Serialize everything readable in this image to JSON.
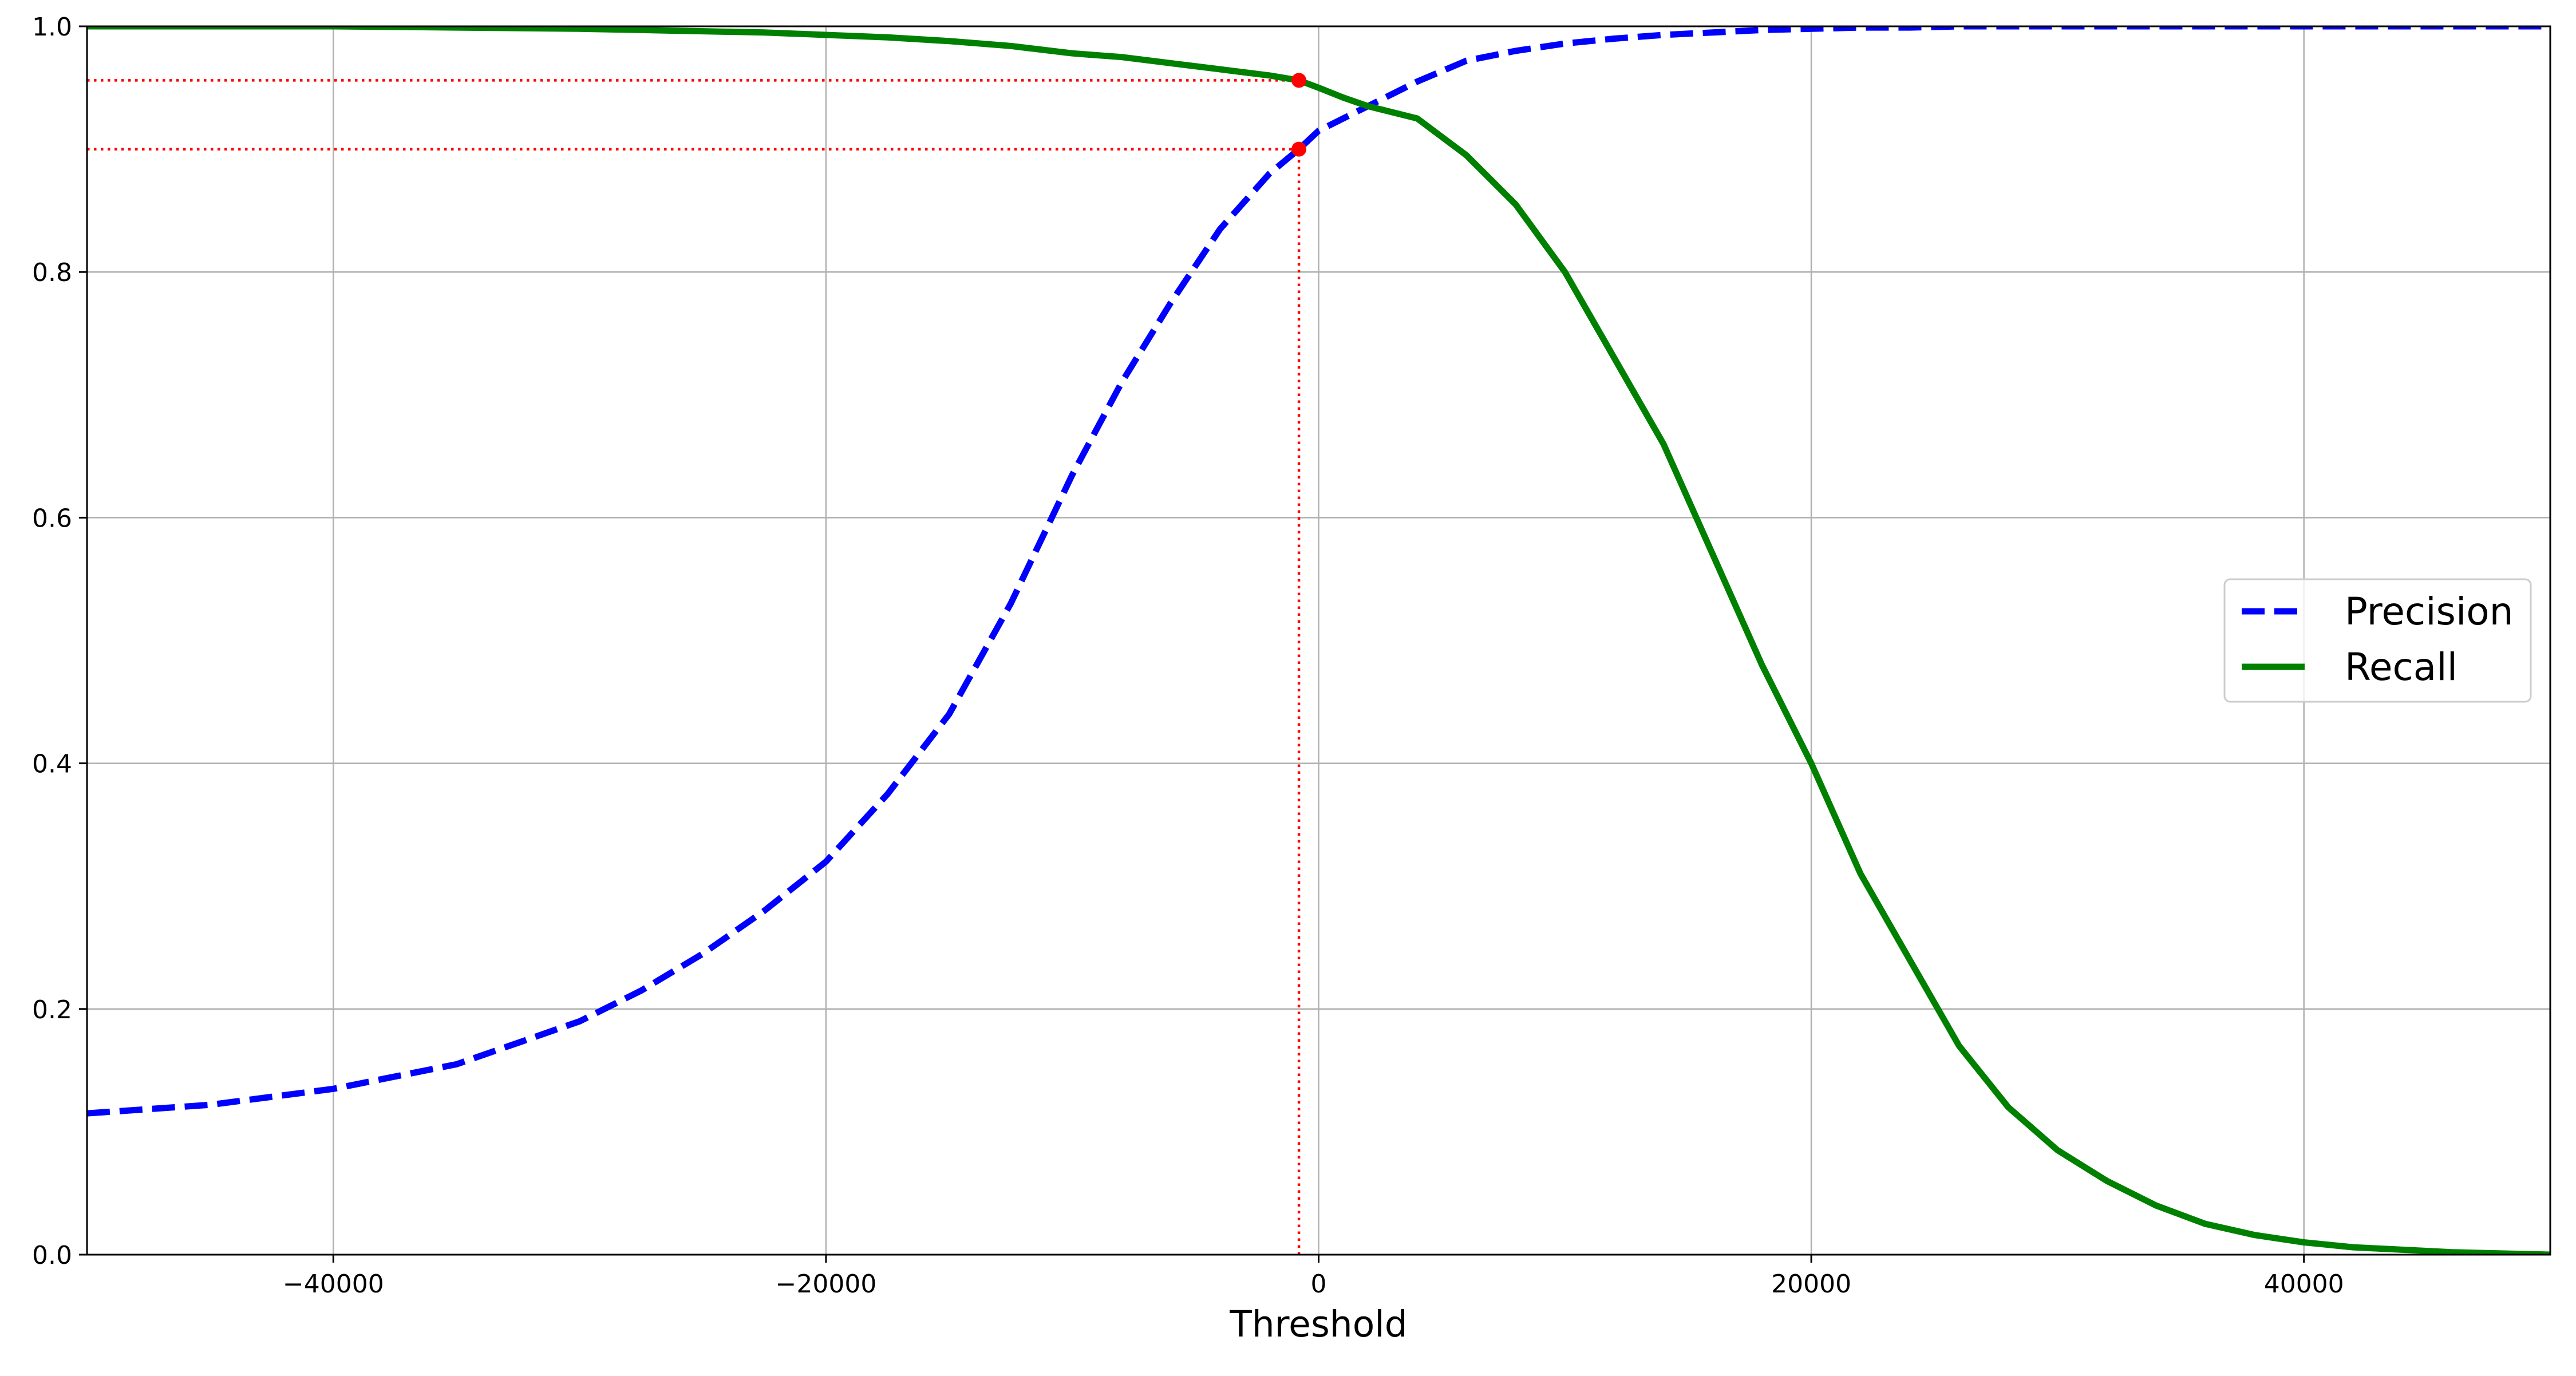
{
  "chart_data": {
    "type": "line",
    "title": "",
    "xlabel": "Threshold",
    "ylabel": "",
    "xlim": [
      -50000,
      50000
    ],
    "ylim": [
      0,
      1.0
    ],
    "grid": true,
    "legend_position": "center-right",
    "x_ticks": [
      -40000,
      -20000,
      0,
      20000,
      40000
    ],
    "x_tick_labels": [
      "−40000",
      "−20000",
      "0",
      "20000",
      "40000"
    ],
    "y_ticks": [
      0.0,
      0.2,
      0.4,
      0.6,
      0.8,
      1.0
    ],
    "y_tick_labels": [
      "0.0",
      "0.2",
      "0.4",
      "0.6",
      "0.8",
      "1.0"
    ],
    "x": [
      -50000,
      -45000,
      -40000,
      -35000,
      -30000,
      -27500,
      -25000,
      -22500,
      -20000,
      -17500,
      -15000,
      -12500,
      -10000,
      -8000,
      -6000,
      -4000,
      -2000,
      -800,
      0,
      1000,
      2000,
      4000,
      6000,
      8000,
      10000,
      12000,
      14000,
      16000,
      18000,
      20000,
      22000,
      24000,
      26000,
      28000,
      30000,
      32000,
      34000,
      36000,
      38000,
      40000,
      42000,
      44000,
      46000,
      48000,
      50000
    ],
    "series": [
      {
        "name": "Precision",
        "color": "#0000ff",
        "style": "dashed",
        "values": [
          0.115,
          0.122,
          0.135,
          0.155,
          0.19,
          0.215,
          0.245,
          0.28,
          0.32,
          0.375,
          0.44,
          0.53,
          0.635,
          0.71,
          0.775,
          0.835,
          0.88,
          0.9,
          0.915,
          0.925,
          0.935,
          0.955,
          0.972,
          0.98,
          0.986,
          0.99,
          0.993,
          0.995,
          0.997,
          0.998,
          0.999,
          0.999,
          1.0,
          1.0,
          1.0,
          1.0,
          1.0,
          1.0,
          1.0,
          1.0,
          1.0,
          1.0,
          1.0,
          1.0,
          1.0
        ]
      },
      {
        "name": "Recall",
        "color": "#008000",
        "style": "solid",
        "values": [
          1.0,
          1.0,
          1.0,
          0.999,
          0.998,
          0.997,
          0.996,
          0.995,
          0.993,
          0.991,
          0.988,
          0.984,
          0.978,
          0.975,
          0.97,
          0.965,
          0.96,
          0.956,
          0.95,
          0.942,
          0.935,
          0.925,
          0.895,
          0.855,
          0.8,
          0.73,
          0.66,
          0.57,
          0.48,
          0.4,
          0.31,
          0.24,
          0.17,
          0.12,
          0.085,
          0.06,
          0.04,
          0.025,
          0.016,
          0.01,
          0.006,
          0.004,
          0.002,
          0.001,
          0.0
        ]
      }
    ],
    "annotations": {
      "threshold": -800,
      "precision_at_threshold": 0.9,
      "recall_at_threshold": 0.956,
      "color": "#ff0000"
    }
  }
}
